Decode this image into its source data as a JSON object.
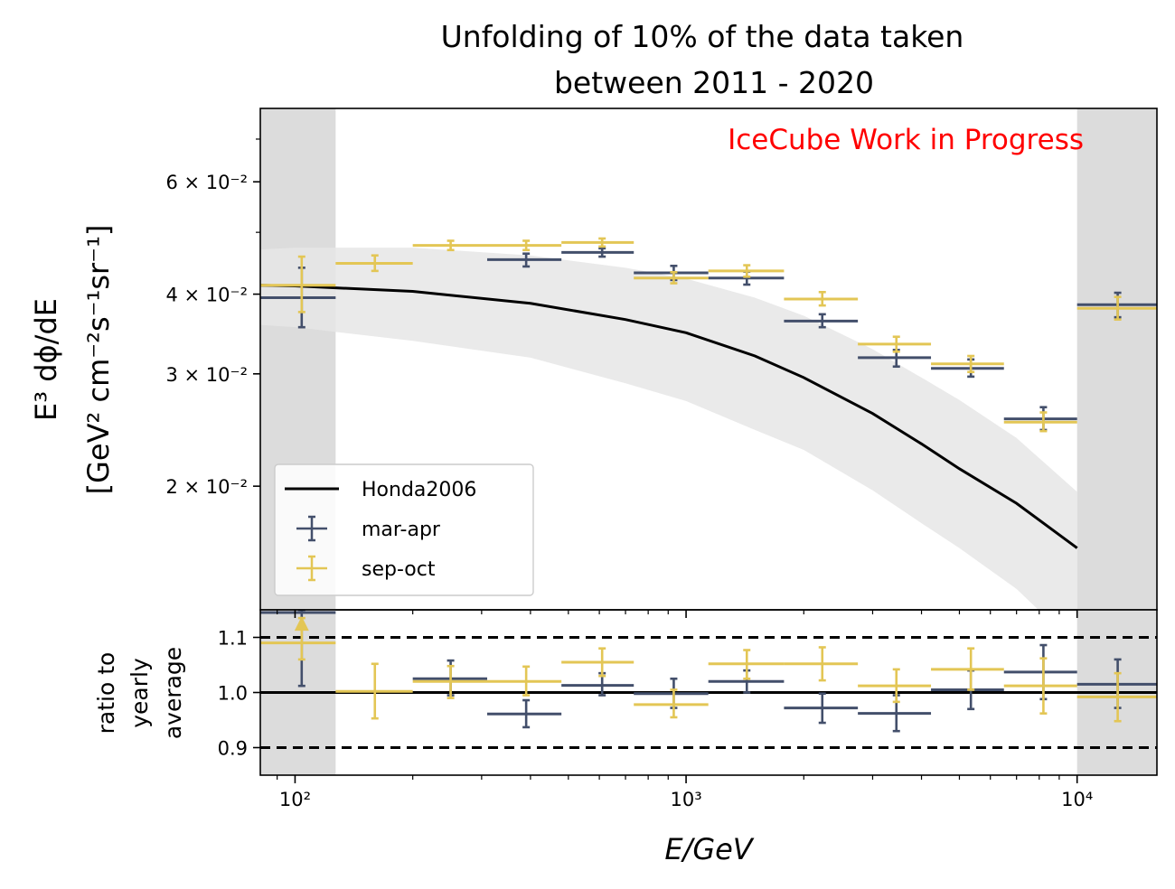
{
  "chart_data": {
    "type": "scatter",
    "title_line1": "Unfolding of 10% of the data taken",
    "title_line2": "between  2011 - 2020",
    "annotation": "IceCube Work in Progress",
    "annotation_color": "#ff0000",
    "xlabel": "E/GeV",
    "ylabel_line1": "E³ dϕ/dE",
    "ylabel_line2": "[GeV² cm⁻²s⁻¹sr⁻¹]",
    "ratio_ylabel_lines": [
      "ratio to",
      "yearly",
      "average"
    ],
    "x_scale": "log",
    "xlim": [
      81.5,
      16000
    ],
    "y_scale": "log",
    "ylim": [
      0.0128,
      0.0782
    ],
    "ratio_ylim": [
      0.85,
      1.15
    ],
    "x_ticks": [
      {
        "value": 100,
        "label": "10²"
      },
      {
        "value": 1000,
        "label": "10³"
      },
      {
        "value": 10000,
        "label": "10⁴"
      }
    ],
    "y_ticks": [
      {
        "value": 0.02,
        "label": "2 × 10⁻²"
      },
      {
        "value": 0.03,
        "label": "3 × 10⁻²"
      },
      {
        "value": 0.04,
        "label": "4 × 10⁻²"
      },
      {
        "value": 0.06,
        "label": "6 × 10⁻²"
      }
    ],
    "ratio_ticks": [
      {
        "value": 0.9,
        "label": "0.9"
      },
      {
        "value": 1.0,
        "label": "1.0"
      },
      {
        "value": 1.1,
        "label": "1.1"
      }
    ],
    "ratio_dashed_lines": [
      0.9,
      1.1
    ],
    "ratio_solid_line": 1.0,
    "excluded_regions": [
      [
        81.5,
        127
      ],
      [
        10000,
        16000
      ]
    ],
    "legend": {
      "placement": "lower-left",
      "entries": [
        {
          "label": "Honda2006",
          "kind": "line",
          "color": "#000000"
        },
        {
          "label": "mar-apr",
          "kind": "errorbar",
          "color": "#434f6b"
        },
        {
          "label": "sep-oct",
          "kind": "errorbar",
          "color": "#e3c655"
        }
      ]
    },
    "model": {
      "name": "Honda2006",
      "color": "#000000",
      "band_color": "#e6e6e6",
      "x": [
        81.5,
        100,
        200,
        400,
        700,
        1000,
        1500,
        2000,
        3000,
        4000,
        5000,
        7000,
        10000
      ],
      "y": [
        0.0413,
        0.0412,
        0.0404,
        0.0387,
        0.0365,
        0.0348,
        0.032,
        0.0296,
        0.026,
        0.0233,
        0.0213,
        0.0188,
        0.016
      ],
      "band_low": [
        0.0358,
        0.0355,
        0.0338,
        0.0318,
        0.029,
        0.0272,
        0.0245,
        0.0228,
        0.0197,
        0.0175,
        0.016,
        0.0138,
        0.0112
      ],
      "band_high": [
        0.047,
        0.0473,
        0.0473,
        0.046,
        0.044,
        0.0423,
        0.0395,
        0.037,
        0.0328,
        0.0296,
        0.0273,
        0.0238,
        0.0196
      ]
    },
    "series": [
      {
        "name": "mar-apr",
        "color": "#434f6b",
        "points": [
          {
            "x": 104,
            "xlo": 81.5,
            "xhi": 127,
            "y": 0.0395,
            "ylo": 0.0355,
            "yhi": 0.044
          },
          {
            "x": 390,
            "xlo": 310,
            "xhi": 480,
            "y": 0.0453,
            "ylo": 0.0442,
            "yhi": 0.0463
          },
          {
            "x": 610,
            "xlo": 480,
            "xhi": 735,
            "y": 0.0465,
            "ylo": 0.0458,
            "yhi": 0.0472
          },
          {
            "x": 930,
            "xlo": 735,
            "xhi": 1140,
            "y": 0.0432,
            "ylo": 0.0421,
            "yhi": 0.0443
          },
          {
            "x": 1430,
            "xlo": 1140,
            "xhi": 1780,
            "y": 0.0424,
            "ylo": 0.0414,
            "yhi": 0.0434
          },
          {
            "x": 2230,
            "xlo": 1780,
            "xhi": 2750,
            "y": 0.0363,
            "ylo": 0.0355,
            "yhi": 0.0372
          },
          {
            "x": 3450,
            "xlo": 2750,
            "xhi": 4230,
            "y": 0.0318,
            "ylo": 0.0308,
            "yhi": 0.0327
          },
          {
            "x": 5350,
            "xlo": 4230,
            "xhi": 6500,
            "y": 0.0306,
            "ylo": 0.0297,
            "yhi": 0.0316
          },
          {
            "x": 8200,
            "xlo": 6500,
            "xhi": 10000,
            "y": 0.0255,
            "ylo": 0.0245,
            "yhi": 0.0266
          },
          {
            "x": 12700,
            "xlo": 10000,
            "xhi": 16000,
            "y": 0.0385,
            "ylo": 0.0368,
            "yhi": 0.0402
          }
        ],
        "ratio": [
          {
            "x": 104,
            "y": 1.145,
            "ylo": 1.012,
            "yhi": 1.15
          },
          {
            "x": 250,
            "xlo": 200,
            "xhi": 310,
            "y": 1.025,
            "ylo": 0.995,
            "yhi": 1.058
          },
          {
            "x": 390,
            "xlo": 310,
            "xhi": 480,
            "y": 0.961,
            "ylo": 0.937,
            "yhi": 0.986
          },
          {
            "x": 610,
            "xlo": 480,
            "xhi": 735,
            "y": 1.013,
            "ylo": 0.995,
            "yhi": 1.035
          },
          {
            "x": 930,
            "xlo": 735,
            "xhi": 1140,
            "y": 0.998,
            "ylo": 0.972,
            "yhi": 1.025
          },
          {
            "x": 1430,
            "xlo": 1140,
            "xhi": 1780,
            "y": 1.02,
            "ylo": 1.0,
            "yhi": 1.04
          },
          {
            "x": 2230,
            "xlo": 1780,
            "xhi": 2750,
            "y": 0.972,
            "ylo": 0.945,
            "yhi": 0.998
          },
          {
            "x": 3450,
            "xlo": 2750,
            "xhi": 4230,
            "y": 0.962,
            "ylo": 0.93,
            "yhi": 0.995
          },
          {
            "x": 5350,
            "xlo": 4230,
            "xhi": 6500,
            "y": 1.005,
            "ylo": 0.97,
            "yhi": 1.04
          },
          {
            "x": 8200,
            "xlo": 6500,
            "xhi": 10000,
            "y": 1.037,
            "ylo": 0.988,
            "yhi": 1.086
          },
          {
            "x": 12700,
            "xlo": 10000,
            "xhi": 16000,
            "y": 1.015,
            "ylo": 0.972,
            "yhi": 1.06
          }
        ]
      },
      {
        "name": "sep-oct",
        "color": "#e3c655",
        "points": [
          {
            "x": 104,
            "xlo": 81.5,
            "xhi": 127,
            "y": 0.0413,
            "ylo": 0.0375,
            "yhi": 0.0458
          },
          {
            "x": 160,
            "xlo": 127,
            "xhi": 200,
            "y": 0.0447,
            "ylo": 0.0435,
            "yhi": 0.046
          },
          {
            "x": 250,
            "xlo": 200,
            "xhi": 310,
            "y": 0.0477,
            "ylo": 0.0469,
            "yhi": 0.0485
          },
          {
            "x": 390,
            "xlo": 310,
            "xhi": 480,
            "y": 0.0477,
            "ylo": 0.0469,
            "yhi": 0.0485
          },
          {
            "x": 610,
            "xlo": 480,
            "xhi": 735,
            "y": 0.0482,
            "ylo": 0.0475,
            "yhi": 0.0489
          },
          {
            "x": 930,
            "xlo": 735,
            "xhi": 1140,
            "y": 0.0424,
            "ylo": 0.0416,
            "yhi": 0.0433
          },
          {
            "x": 1430,
            "xlo": 1140,
            "xhi": 1780,
            "y": 0.0435,
            "ylo": 0.0426,
            "yhi": 0.0444
          },
          {
            "x": 2230,
            "xlo": 1780,
            "xhi": 2750,
            "y": 0.0393,
            "ylo": 0.0384,
            "yhi": 0.0403
          },
          {
            "x": 3450,
            "xlo": 2750,
            "xhi": 4230,
            "y": 0.0334,
            "ylo": 0.0325,
            "yhi": 0.0343
          },
          {
            "x": 5350,
            "xlo": 4230,
            "xhi": 6500,
            "y": 0.0311,
            "ylo": 0.0302,
            "yhi": 0.032
          },
          {
            "x": 8200,
            "xlo": 6500,
            "xhi": 10000,
            "y": 0.0252,
            "ylo": 0.0244,
            "yhi": 0.0261
          },
          {
            "x": 12700,
            "xlo": 10000,
            "xhi": 16000,
            "y": 0.038,
            "ylo": 0.0365,
            "yhi": 0.0396
          }
        ],
        "ratio": [
          {
            "x": 104,
            "y": 1.09,
            "ylo": 1.06,
            "yhi": 1.135,
            "upper_limit_arrow": true
          },
          {
            "x": 160,
            "xlo": 127,
            "xhi": 200,
            "y": 1.002,
            "ylo": 0.953,
            "yhi": 1.052
          },
          {
            "x": 250,
            "xlo": 200,
            "xhi": 310,
            "y": 1.02,
            "ylo": 0.99,
            "yhi": 1.048
          },
          {
            "x": 390,
            "xlo": 310,
            "xhi": 480,
            "y": 1.02,
            "ylo": 0.995,
            "yhi": 1.047
          },
          {
            "x": 610,
            "xlo": 480,
            "xhi": 735,
            "y": 1.055,
            "ylo": 1.03,
            "yhi": 1.08
          },
          {
            "x": 930,
            "xlo": 735,
            "xhi": 1140,
            "y": 0.978,
            "ylo": 0.955,
            "yhi": 1.005
          },
          {
            "x": 1430,
            "xlo": 1140,
            "xhi": 1780,
            "y": 1.052,
            "ylo": 1.025,
            "yhi": 1.077
          },
          {
            "x": 2230,
            "xlo": 1780,
            "xhi": 2750,
            "y": 1.052,
            "ylo": 1.022,
            "yhi": 1.082
          },
          {
            "x": 3450,
            "xlo": 2750,
            "xhi": 4230,
            "y": 1.012,
            "ylo": 0.983,
            "yhi": 1.042
          },
          {
            "x": 5350,
            "xlo": 4230,
            "xhi": 6500,
            "y": 1.042,
            "ylo": 1.005,
            "yhi": 1.08
          },
          {
            "x": 8200,
            "xlo": 6500,
            "xhi": 10000,
            "y": 1.012,
            "ylo": 0.962,
            "yhi": 1.062
          },
          {
            "x": 12700,
            "xlo": 10000,
            "xhi": 16000,
            "y": 0.992,
            "ylo": 0.948,
            "yhi": 1.035
          }
        ]
      }
    ]
  }
}
